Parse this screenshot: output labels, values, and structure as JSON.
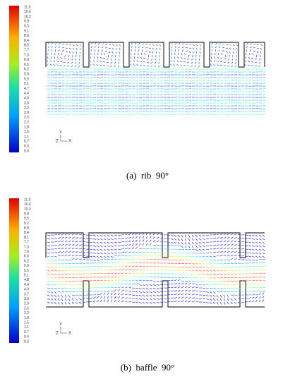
{
  "panels": [
    {
      "colorbar_labels": [
        "11.0",
        "10.6",
        "10.2",
        "9.9",
        "9.5",
        "9.1",
        "8.8",
        "8.4",
        "8.0",
        "7.7",
        "7.3",
        "6.9",
        "6.6",
        "6.2",
        "5.8",
        "5.5",
        "5.1",
        "4.7",
        "4.4",
        "4.0",
        "3.6",
        "3.3",
        "2.9",
        "2.6",
        "2.2",
        "1.8",
        "1.5",
        "1.1",
        "0.7",
        "0.3",
        "0.0"
      ],
      "axes": {
        "y": "Y",
        "z": "Z",
        "x": "X"
      },
      "caption": "(a)  rib  90°"
    },
    {
      "colorbar_labels": [
        "11.0",
        "10.6",
        "10.3",
        "9.9",
        "9.5",
        "9.2",
        "8.8",
        "8.4",
        "8.1",
        "7.7",
        "7.3",
        "7.0",
        "6.6",
        "6.2",
        "5.9",
        "5.5",
        "5.1",
        "4.8",
        "4.4",
        "4.0",
        "3.7",
        "3.3",
        "2.9",
        "2.6",
        "2.2",
        "1.8",
        "1.5",
        "1.1",
        "0.7",
        "0.4",
        "0.0"
      ],
      "axes": {
        "y": "Y",
        "z": "Z",
        "x": "X"
      },
      "caption": "(b)  baffle  90°"
    }
  ]
}
